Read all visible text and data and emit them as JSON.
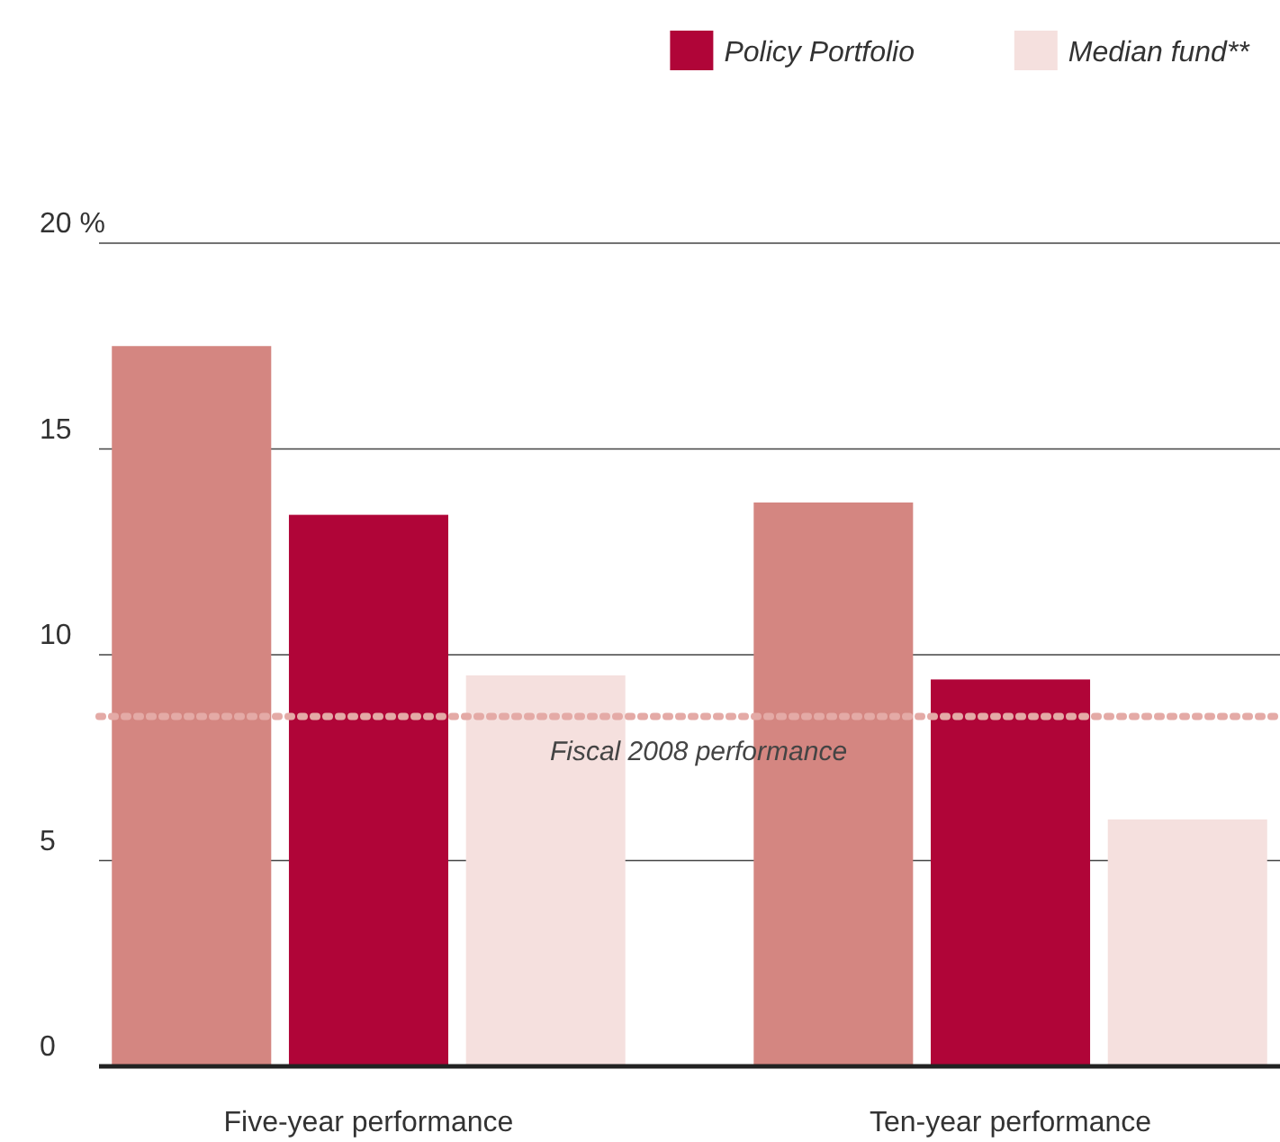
{
  "chart_data": {
    "type": "bar",
    "categories": [
      "Five-year performance",
      "Ten-year performance"
    ],
    "series": [
      {
        "color": "#d48681",
        "values": [
          17.5,
          13.7
        ]
      },
      {
        "name": "Policy Portfolio",
        "color": "#b00538",
        "values": [
          13.4,
          9.4
        ]
      },
      {
        "name": "Median fund**",
        "color": "#f5e0de",
        "values": [
          9.5,
          6.0
        ]
      }
    ],
    "ylim": [
      0,
      20
    ],
    "yticks": [
      0,
      5,
      10,
      15,
      {
        "value": 20,
        "label": "20 %"
      }
    ],
    "grid": "y",
    "legend": "top right",
    "ref_lines": [
      {
        "axis": "y",
        "value": 8.5,
        "label": "Fiscal 2008 performance",
        "color": "#e4aaa6",
        "line_style": "dotted"
      }
    ]
  }
}
